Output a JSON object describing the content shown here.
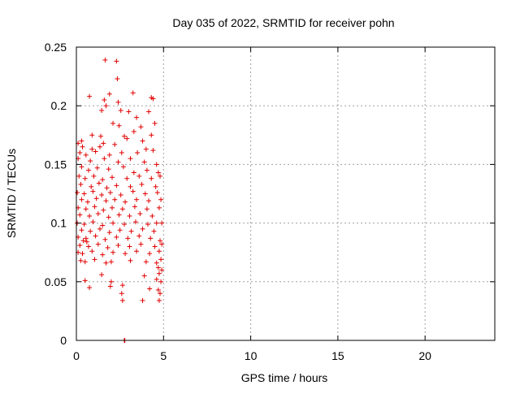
{
  "chart_data": {
    "type": "scatter",
    "title": "Day 035 of 2022, SRMTID for receiver pohn",
    "xlabel": "GPS time / hours",
    "ylabel": "SRMTID / TECUs",
    "xlim": [
      0,
      24
    ],
    "ylim": [
      0,
      0.25
    ],
    "xticks": [
      0,
      5,
      10,
      15,
      20
    ],
    "yticks": [
      0,
      0.05,
      0.1,
      0.15,
      0.2,
      0.25
    ],
    "xtick_labels": [
      "0",
      "5",
      "10",
      "15",
      "20"
    ],
    "ytick_labels": [
      "0",
      "0.05",
      "0.1",
      "0.15",
      "0.2",
      "0.25"
    ],
    "grid": true,
    "marker": "+",
    "color": "#e00000",
    "series": [
      {
        "points": [
          [
            1.65,
            0.239
          ],
          [
            2.3,
            0.238
          ],
          [
            2.35,
            0.223
          ],
          [
            1.9,
            0.21
          ],
          [
            3.25,
            0.211
          ],
          [
            0.75,
            0.208
          ],
          [
            1.6,
            0.205
          ],
          [
            4.3,
            0.207
          ],
          [
            4.4,
            0.206
          ],
          [
            2.4,
            0.203
          ],
          [
            1.45,
            0.196
          ],
          [
            2.55,
            0.196
          ],
          [
            1.7,
            0.2
          ],
          [
            3.0,
            0.195
          ],
          [
            4.15,
            0.195
          ],
          [
            3.45,
            0.19
          ],
          [
            2.1,
            0.185
          ],
          [
            4.5,
            0.185
          ],
          [
            2.45,
            0.183
          ],
          [
            3.7,
            0.182
          ],
          [
            0.9,
            0.175
          ],
          [
            1.4,
            0.174
          ],
          [
            2.75,
            0.174
          ],
          [
            2.9,
            0.172
          ],
          [
            3.3,
            0.178
          ],
          [
            4.3,
            0.175
          ],
          [
            0.3,
            0.17
          ],
          [
            0.1,
            0.168
          ],
          [
            1.55,
            0.168
          ],
          [
            3.8,
            0.17
          ],
          [
            0.35,
            0.165
          ],
          [
            0.9,
            0.163
          ],
          [
            1.35,
            0.165
          ],
          [
            2.2,
            0.167
          ],
          [
            4.0,
            0.163
          ],
          [
            0.2,
            0.16
          ],
          [
            0.55,
            0.158
          ],
          [
            1.1,
            0.161
          ],
          [
            1.9,
            0.158
          ],
          [
            2.6,
            0.16
          ],
          [
            3.5,
            0.16
          ],
          [
            4.4,
            0.162
          ],
          [
            0.1,
            0.155
          ],
          [
            0.8,
            0.153
          ],
          [
            1.6,
            0.155
          ],
          [
            2.4,
            0.152
          ],
          [
            3.1,
            0.155
          ],
          [
            3.9,
            0.152
          ],
          [
            4.6,
            0.15
          ],
          [
            0.3,
            0.148
          ],
          [
            0.7,
            0.145
          ],
          [
            1.2,
            0.147
          ],
          [
            1.85,
            0.146
          ],
          [
            2.7,
            0.148
          ],
          [
            3.3,
            0.143
          ],
          [
            4.05,
            0.145
          ],
          [
            4.7,
            0.143
          ],
          [
            0.15,
            0.14
          ],
          [
            0.5,
            0.138
          ],
          [
            1.0,
            0.14
          ],
          [
            1.5,
            0.137
          ],
          [
            2.05,
            0.139
          ],
          [
            2.9,
            0.138
          ],
          [
            3.6,
            0.14
          ],
          [
            4.3,
            0.138
          ],
          [
            4.8,
            0.14
          ],
          [
            0.25,
            0.133
          ],
          [
            0.85,
            0.131
          ],
          [
            1.3,
            0.134
          ],
          [
            1.75,
            0.13
          ],
          [
            2.3,
            0.132
          ],
          [
            3.1,
            0.131
          ],
          [
            3.75,
            0.133
          ],
          [
            4.55,
            0.131
          ],
          [
            0.05,
            0.126
          ],
          [
            0.45,
            0.125
          ],
          [
            0.95,
            0.127
          ],
          [
            1.45,
            0.124
          ],
          [
            1.95,
            0.126
          ],
          [
            2.55,
            0.124
          ],
          [
            3.25,
            0.127
          ],
          [
            3.95,
            0.125
          ],
          [
            4.65,
            0.126
          ],
          [
            0.3,
            0.12
          ],
          [
            0.65,
            0.118
          ],
          [
            1.15,
            0.121
          ],
          [
            1.7,
            0.119
          ],
          [
            2.2,
            0.12
          ],
          [
            2.8,
            0.118
          ],
          [
            3.45,
            0.12
          ],
          [
            4.15,
            0.119
          ],
          [
            4.85,
            0.12
          ],
          [
            0.1,
            0.113
          ],
          [
            0.55,
            0.112
          ],
          [
            1.05,
            0.114
          ],
          [
            1.55,
            0.111
          ],
          [
            2.05,
            0.113
          ],
          [
            2.65,
            0.112
          ],
          [
            3.35,
            0.114
          ],
          [
            4.05,
            0.112
          ],
          [
            4.75,
            0.113
          ],
          [
            0.2,
            0.107
          ],
          [
            0.75,
            0.106
          ],
          [
            1.25,
            0.108
          ],
          [
            1.85,
            0.105
          ],
          [
            2.45,
            0.107
          ],
          [
            3.05,
            0.106
          ],
          [
            3.65,
            0.108
          ],
          [
            4.35,
            0.106
          ],
          [
            4.9,
            0.1
          ],
          [
            0.05,
            0.1
          ],
          [
            0.45,
            0.099
          ],
          [
            0.95,
            0.101
          ],
          [
            1.5,
            0.098
          ],
          [
            2.1,
            0.1
          ],
          [
            2.75,
            0.099
          ],
          [
            3.4,
            0.101
          ],
          [
            4.1,
            0.099
          ],
          [
            4.6,
            0.1
          ],
          [
            0.3,
            0.094
          ],
          [
            0.8,
            0.093
          ],
          [
            1.35,
            0.095
          ],
          [
            1.9,
            0.092
          ],
          [
            2.5,
            0.094
          ],
          [
            3.15,
            0.093
          ],
          [
            3.8,
            0.095
          ],
          [
            4.45,
            0.093
          ],
          [
            0.1,
            0.088
          ],
          [
            0.55,
            0.087
          ],
          [
            0.4,
            0.085
          ],
          [
            0.6,
            0.084
          ],
          [
            1.1,
            0.089
          ],
          [
            1.65,
            0.086
          ],
          [
            2.3,
            0.088
          ],
          [
            2.95,
            0.087
          ],
          [
            3.6,
            0.089
          ],
          [
            4.25,
            0.087
          ],
          [
            4.8,
            0.085
          ],
          [
            0.2,
            0.081
          ],
          [
            0.7,
            0.08
          ],
          [
            1.25,
            0.082
          ],
          [
            1.8,
            0.079
          ],
          [
            2.4,
            0.081
          ],
          [
            3.05,
            0.08
          ],
          [
            3.7,
            0.082
          ],
          [
            4.5,
            0.08
          ],
          [
            4.9,
            0.082
          ],
          [
            0.1,
            0.075
          ],
          [
            0.35,
            0.074
          ],
          [
            0.9,
            0.076
          ],
          [
            1.5,
            0.073
          ],
          [
            2.1,
            0.075
          ],
          [
            2.8,
            0.074
          ],
          [
            3.45,
            0.076
          ],
          [
            4.2,
            0.074
          ],
          [
            4.75,
            0.076
          ],
          [
            0.25,
            0.068
          ],
          [
            0.5,
            0.067
          ],
          [
            1.05,
            0.069
          ],
          [
            1.7,
            0.066
          ],
          [
            2.0,
            0.067
          ],
          [
            3.1,
            0.068
          ],
          [
            4.0,
            0.067
          ],
          [
            4.6,
            0.066
          ],
          [
            4.85,
            0.069
          ],
          [
            4.7,
            0.062
          ],
          [
            4.9,
            0.06
          ],
          [
            1.45,
            0.056
          ],
          [
            3.9,
            0.055
          ],
          [
            4.75,
            0.057
          ],
          [
            4.6,
            0.052
          ],
          [
            0.5,
            0.051
          ],
          [
            2.0,
            0.05
          ],
          [
            4.85,
            0.05
          ],
          [
            0.75,
            0.045
          ],
          [
            1.95,
            0.046
          ],
          [
            2.65,
            0.047
          ],
          [
            4.2,
            0.044
          ],
          [
            4.7,
            0.043
          ],
          [
            2.6,
            0.04
          ],
          [
            4.8,
            0.04
          ],
          [
            2.65,
            0.034
          ],
          [
            3.8,
            0.034
          ],
          [
            4.75,
            0.034
          ],
          [
            2.75,
            0.0
          ],
          [
            2.78,
            0.0
          ]
        ]
      }
    ]
  }
}
